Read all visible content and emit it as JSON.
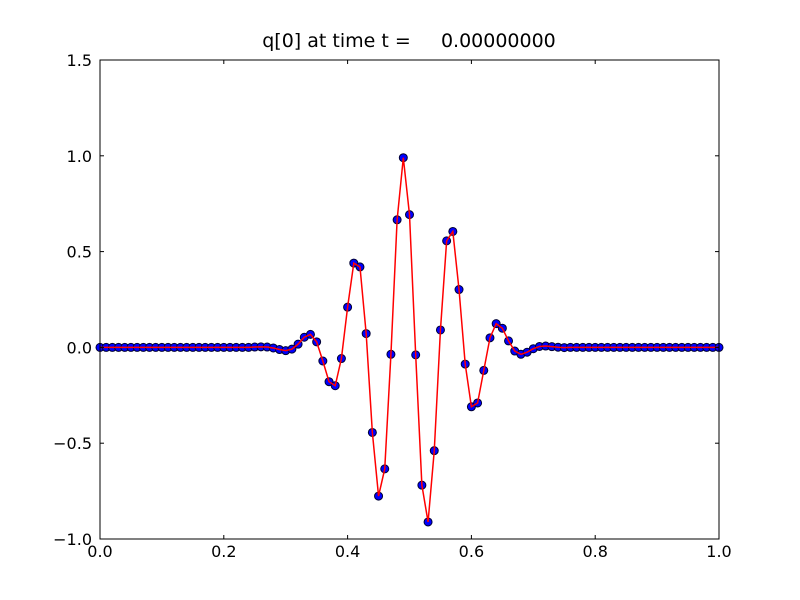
{
  "chart_data": {
    "type": "scatter-line",
    "title": "q[0] at time t =     0.00000000",
    "x": [
      0,
      0.01,
      0.02,
      0.03,
      0.04,
      0.05,
      0.06,
      0.07,
      0.08,
      0.09,
      0.1,
      0.11,
      0.12,
      0.13,
      0.14,
      0.15,
      0.16,
      0.17,
      0.18,
      0.19,
      0.2,
      0.21,
      0.22,
      0.23,
      0.24,
      0.25,
      0.26,
      0.27,
      0.28,
      0.29,
      0.3,
      0.31,
      0.32,
      0.33,
      0.34,
      0.35,
      0.36,
      0.37,
      0.38,
      0.39,
      0.4,
      0.41,
      0.42,
      0.43,
      0.44,
      0.45,
      0.46,
      0.47,
      0.48,
      0.49,
      0.5,
      0.51,
      0.52,
      0.53,
      0.54,
      0.55,
      0.56,
      0.57,
      0.58,
      0.59,
      0.6,
      0.61,
      0.62,
      0.63,
      0.64,
      0.65,
      0.66,
      0.67,
      0.68,
      0.69,
      0.7,
      0.71,
      0.72,
      0.73,
      0.74,
      0.75,
      0.76,
      0.77,
      0.78,
      0.79,
      0.8,
      0.81,
      0.82,
      0.83,
      0.84,
      0.85,
      0.86,
      0.87,
      0.88,
      0.89,
      0.9,
      0.91,
      0.92,
      0.93,
      0.94,
      0.95,
      0.96,
      0.97,
      0.98,
      0.99,
      1
    ],
    "values": [
      0,
      0,
      0,
      0,
      0,
      0,
      0,
      0,
      0,
      0,
      0,
      0,
      0,
      0,
      0,
      0,
      0,
      0,
      0,
      0,
      0,
      0,
      0,
      0,
      0,
      0.002,
      0.003,
      0.002,
      -0.003,
      -0.011,
      -0.017,
      -0.009,
      0.017,
      0.053,
      0.068,
      0.029,
      -0.071,
      -0.179,
      -0.2,
      -0.058,
      0.21,
      0.44,
      0.42,
      0.072,
      -0.444,
      -0.776,
      -0.634,
      -0.036,
      0.666,
      0.99,
      0.693,
      -0.039,
      -0.719,
      -0.911,
      -0.539,
      0.091,
      0.556,
      0.605,
      0.302,
      -0.087,
      -0.31,
      -0.29,
      -0.12,
      0.05,
      0.124,
      0.1,
      0.034,
      -0.019,
      -0.036,
      -0.025,
      -0.007,
      0.005,
      0.007,
      0.004,
      0.001,
      -0.001,
      0,
      0,
      0,
      0,
      0,
      0,
      0,
      0,
      0,
      0,
      0,
      0,
      0,
      0,
      0,
      0,
      0,
      0,
      0,
      0,
      0,
      0,
      0,
      0,
      0
    ],
    "marker_color": "#0000ff",
    "marker_edge_color": "#000033",
    "line_color": "#ff0000",
    "xlim": [
      0,
      1
    ],
    "ylim": [
      -1,
      1.5
    ],
    "xticks": [
      {
        "value": 0,
        "label": "0.0"
      },
      0.2,
      0.4,
      0.6,
      0.8,
      {
        "value": 1,
        "label": "1.0"
      }
    ],
    "yticks": [
      {
        "value": -1,
        "label": "−1.0"
      },
      {
        "value": -0.5,
        "label": "−0.5"
      },
      {
        "value": 0,
        "label": "0.0"
      },
      0.5,
      {
        "value": 1,
        "label": "1.0"
      },
      1.5
    ]
  }
}
